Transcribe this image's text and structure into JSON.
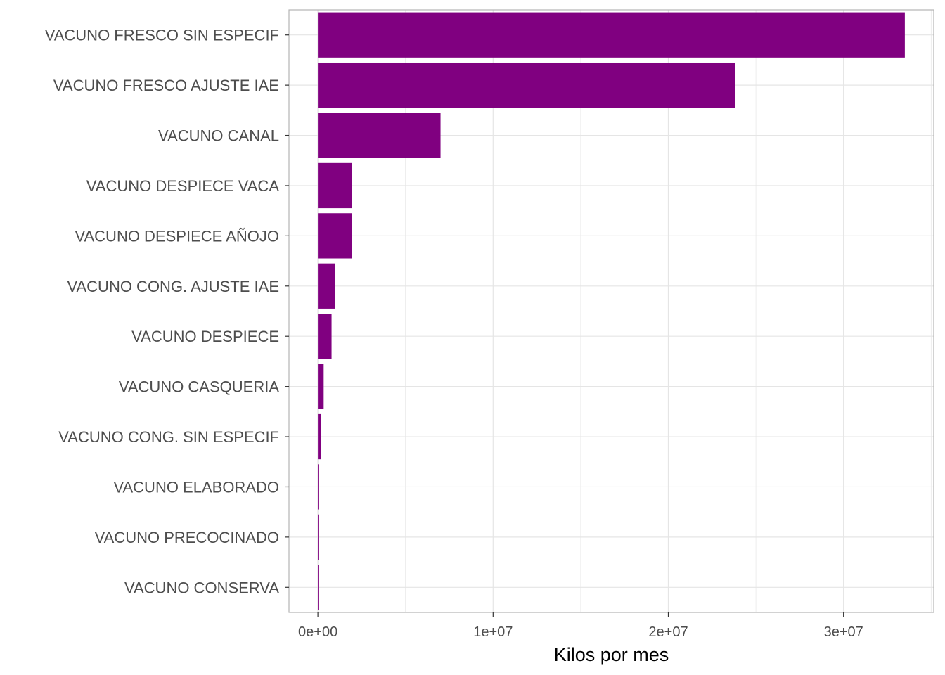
{
  "chart_data": {
    "type": "bar",
    "orientation": "horizontal",
    "categories": [
      "VACUNO FRESCO SIN ESPECIF",
      "VACUNO FRESCO AJUSTE IAE",
      "VACUNO CANAL",
      "VACUNO DESPIECE VACA",
      "VACUNO DESPIECE AÑOJO",
      "VACUNO CONG. AJUSTE IAE",
      "VACUNO DESPIECE",
      "VACUNO CASQUERIA",
      "VACUNO CONG. SIN ESPECIF",
      "VACUNO ELABORADO",
      "VACUNO PRECOCINADO",
      "VACUNO CONSERVA"
    ],
    "values": [
      33500000,
      23800000,
      7000000,
      1950000,
      1950000,
      980000,
      780000,
      330000,
      170000,
      50000,
      40000,
      30000
    ],
    "xlabel": "Kilos por mes",
    "ylabel": "",
    "xlim": [
      -1650000,
      35150000
    ],
    "x_ticks": [
      0,
      10000000,
      20000000,
      30000000
    ],
    "x_tick_labels": [
      "0e+00",
      "1e+07",
      "2e+07",
      "3e+07"
    ],
    "grid": true,
    "bar_color": "#800080",
    "grid_color": "#e5e5e5",
    "panel_border_color": "#b3b3b3"
  }
}
